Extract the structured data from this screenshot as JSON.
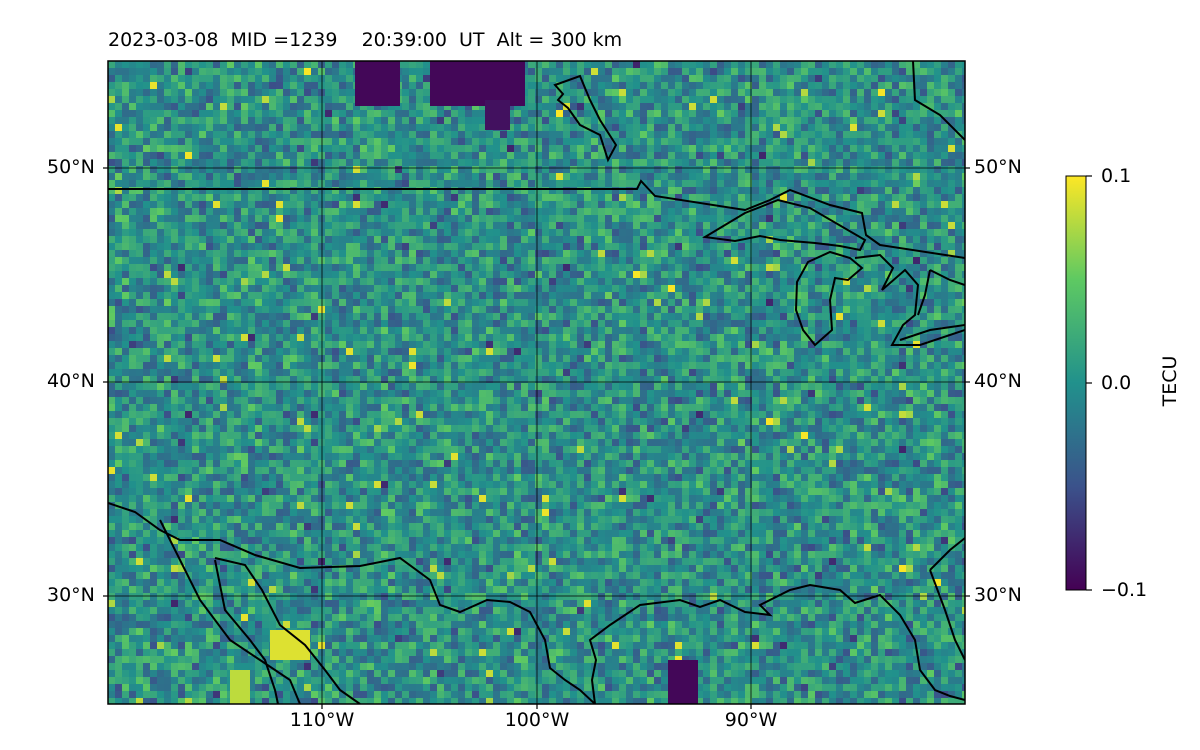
{
  "title": "2023-03-08  MID =1239    20:39:00  UT  Alt = 300 km",
  "map": {
    "lat_ticks": [
      "50°N",
      "40°N",
      "30°N"
    ],
    "lon_ticks": [
      "110°W",
      "100°W",
      "90°W"
    ],
    "colormap": "viridis",
    "gridlines": true,
    "features": [
      "coastlines",
      "country borders",
      "great lakes"
    ]
  },
  "colorbar": {
    "label": "TECU",
    "ticks": [
      "0.1",
      "0.0",
      "−0.1"
    ],
    "range": [
      -0.1,
      0.1
    ],
    "colors": [
      "#440154",
      "#3b528b",
      "#21918c",
      "#5ec962",
      "#fde725"
    ]
  }
}
